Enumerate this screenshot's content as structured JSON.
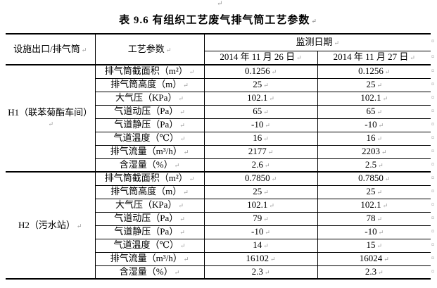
{
  "marks": {
    "paragraph": "↵",
    "row_end": "¤"
  },
  "title": "表 9.6 有组织工艺废气排气筒工艺参数",
  "table": {
    "header": {
      "outlet_col": "设施出口/排气筒",
      "param_col": "工艺参数",
      "date_group": "监测日期",
      "dates": [
        "2014 年 11 月 26 日",
        "2014 年 11 月 27 日"
      ]
    },
    "sections": [
      {
        "outlet": "H1（联苯菊酯车间）",
        "rows": [
          {
            "param": "排气筒截面积（m²）",
            "v1": "0.1256",
            "v2": "0.1256"
          },
          {
            "param": "排气筒高度（m）",
            "v1": "25",
            "v2": "25"
          },
          {
            "param": "大气压（KPa）",
            "v1": "102.1",
            "v2": "102.1"
          },
          {
            "param": "气道动压（Pa）",
            "v1": "65",
            "v2": "65"
          },
          {
            "param": "气道静压（Pa）",
            "v1": "-10",
            "v2": "-10"
          },
          {
            "param": "气道温度（℃）",
            "v1": "16",
            "v2": "16"
          },
          {
            "param": "排气流量（m³/h）",
            "v1": "2177",
            "v2": "2203"
          },
          {
            "param": "含湿量（%）",
            "v1": "2.6",
            "v2": "2.5"
          }
        ]
      },
      {
        "outlet": "H2（污水站）",
        "rows": [
          {
            "param": "排气筒截面积（m²）",
            "v1": "0.7850",
            "v2": "0.7850"
          },
          {
            "param": "排气筒高度（m）",
            "v1": "25",
            "v2": "25"
          },
          {
            "param": "大气压（KPa）",
            "v1": "102.1",
            "v2": "102.1"
          },
          {
            "param": "气道动压（Pa）",
            "v1": "79",
            "v2": "78"
          },
          {
            "param": "气道静压（Pa）",
            "v1": "-10",
            "v2": "-10"
          },
          {
            "param": "气道温度（℃）",
            "v1": "14",
            "v2": "15"
          },
          {
            "param": "排气流量（m³/h）",
            "v1": "16102",
            "v2": "16024"
          },
          {
            "param": "含湿量（%）",
            "v1": "2.3",
            "v2": "2.3"
          }
        ]
      }
    ]
  },
  "colors": {
    "text": "#000000",
    "border": "#000000",
    "formatting_mark": "#999999",
    "background": "#ffffff"
  }
}
